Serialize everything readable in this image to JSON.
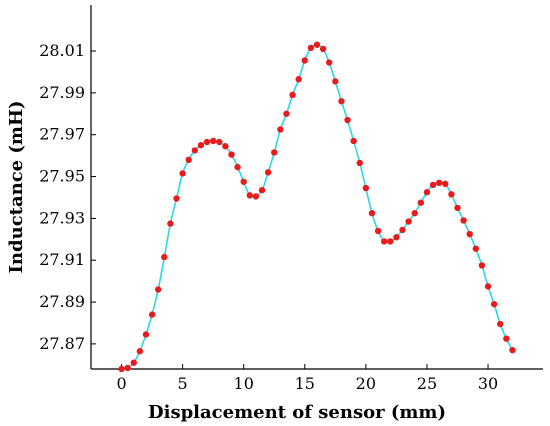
{
  "chart_data": {
    "type": "line",
    "xlabel": "Displacement of sensor (mm)",
    "ylabel": "Inductance (mH)",
    "xlim": [
      -2.5,
      34.5
    ],
    "ylim": [
      27.858,
      28.032
    ],
    "x_ticks": [
      0,
      5,
      10,
      15,
      20,
      25,
      30
    ],
    "x_tick_labels": [
      "0",
      "5",
      "10",
      "15",
      "20",
      "25",
      "30"
    ],
    "y_ticks": [
      27.87,
      27.89,
      27.91,
      27.93,
      27.95,
      27.97,
      27.99,
      28.01
    ],
    "y_tick_labels": [
      "27.87",
      "27.89",
      "27.91",
      "27.93",
      "27.95",
      "27.97",
      "27.99",
      "28.01"
    ],
    "grid": false,
    "line_color": "#29d9e8",
    "marker_color": "#e81c1c",
    "series": [
      {
        "x": [
          0,
          0.5,
          1,
          1.5,
          2,
          2.5,
          3,
          3.5,
          4,
          4.5,
          5,
          5.5,
          6,
          6.5,
          7,
          7.5,
          8,
          8.5,
          9,
          9.5,
          10,
          10.5,
          11,
          11.5,
          12,
          12.5,
          13,
          13.5,
          14,
          14.5,
          15,
          15.5,
          16,
          16.5,
          17,
          17.5,
          18,
          18.5,
          19,
          19.5,
          20,
          20.5,
          21,
          21.5,
          22,
          22.5,
          23,
          23.5,
          24,
          24.5,
          25,
          25.5,
          26,
          26.5,
          27,
          27.5,
          28,
          28.5,
          29,
          29.5,
          30,
          30.5,
          31,
          31.5,
          32
        ],
        "y": [
          27.858,
          27.8585,
          27.861,
          27.8665,
          27.8745,
          27.884,
          27.896,
          27.9115,
          27.9275,
          27.9395,
          27.9515,
          27.958,
          27.9625,
          27.965,
          27.9665,
          27.967,
          27.9665,
          27.9645,
          27.9605,
          27.9545,
          27.9475,
          27.941,
          27.9405,
          27.9435,
          27.952,
          27.9615,
          27.9725,
          27.98,
          27.989,
          27.9965,
          28.0055,
          28.0115,
          28.013,
          28.011,
          28.0045,
          27.9955,
          27.986,
          27.977,
          27.967,
          27.9565,
          27.9445,
          27.9325,
          27.924,
          27.919,
          27.919,
          27.921,
          27.9245,
          27.9285,
          27.9325,
          27.9375,
          27.9425,
          27.946,
          27.947,
          27.9465,
          27.9415,
          27.935,
          27.929,
          27.9225,
          27.9155,
          27.9075,
          27.8975,
          27.889,
          27.8795,
          27.8725,
          27.867
        ]
      }
    ]
  }
}
